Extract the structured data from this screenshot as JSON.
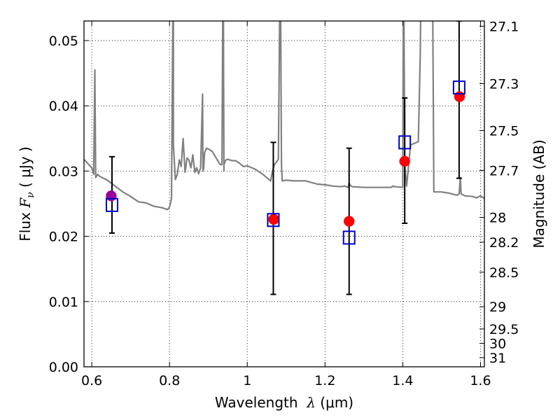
{
  "chart_data": {
    "type": "scatter",
    "xlabel": {
      "prefix": "Wavelength  ",
      "symbol": "λ",
      "unit": " (μm)"
    },
    "ylabel": {
      "prefix": "Flux  ",
      "symbol": "F",
      "subscript": "ν",
      "unit": "  ( μJy )"
    },
    "y2label": "Magnitude (AB)",
    "xlim": [
      0.58,
      1.61
    ],
    "ylim": [
      0.0,
      0.053
    ],
    "grid": true,
    "x_ticks": [
      0.6,
      0.8,
      1.0,
      1.2,
      1.4,
      1.6
    ],
    "x_tick_labels": [
      "0.6",
      "0.8",
      "1",
      "1.2",
      "1.4",
      "1.6"
    ],
    "y_ticks": [
      0.0,
      0.01,
      0.02,
      0.03,
      0.04,
      0.05
    ],
    "y_tick_labels": [
      "0.00",
      "0.01",
      "0.02",
      "0.03",
      "0.04",
      "0.05"
    ],
    "y2_ticks": [
      {
        "label": "27.1",
        "flux": 0.0522
      },
      {
        "label": "27.3",
        "flux": 0.0434
      },
      {
        "label": "27.5",
        "flux": 0.0362
      },
      {
        "label": "27.7",
        "flux": 0.0301
      },
      {
        "label": "28",
        "flux": 0.0229
      },
      {
        "label": "28.2",
        "flux": 0.0191
      },
      {
        "label": "28.5",
        "flux": 0.0145
      },
      {
        "label": "29",
        "flux": 0.0092
      },
      {
        "label": "29.5",
        "flux": 0.0058
      },
      {
        "label": "30",
        "flux": 0.0036
      },
      {
        "label": "31",
        "flux": 0.0014
      }
    ],
    "series": [
      {
        "marker": "line",
        "color": "#808080",
        "x": [
          0.58,
          0.6,
          0.605,
          0.608,
          0.61,
          0.615,
          0.62,
          0.64,
          0.66,
          0.68,
          0.7,
          0.72,
          0.74,
          0.76,
          0.78,
          0.795,
          0.8,
          0.805,
          0.81,
          0.81,
          0.815,
          0.82,
          0.825,
          0.83,
          0.835,
          0.84,
          0.845,
          0.85,
          0.855,
          0.86,
          0.865,
          0.87,
          0.875,
          0.88,
          0.885,
          0.886,
          0.888,
          0.89,
          0.895,
          0.9,
          0.91,
          0.92,
          0.93,
          0.935,
          0.938,
          0.94,
          0.94,
          0.945,
          0.95,
          0.96,
          0.97,
          0.98,
          0.99,
          1.0,
          1.02,
          1.04,
          1.06,
          1.065,
          1.07,
          1.08,
          1.085,
          1.088,
          1.09,
          1.1,
          1.12,
          1.15,
          1.18,
          1.2,
          1.22,
          1.24,
          1.25,
          1.26,
          1.262,
          1.265,
          1.27,
          1.3,
          1.35,
          1.37,
          1.375,
          1.38,
          1.4,
          1.402,
          1.405,
          1.41,
          1.42,
          1.44,
          1.445,
          1.448,
          1.45,
          1.46,
          1.47,
          1.475,
          1.476,
          1.48,
          1.5,
          1.52,
          1.54,
          1.545,
          1.548,
          1.55,
          1.56,
          1.58,
          1.585,
          1.59,
          1.6,
          1.61
        ],
        "y": [
          0.0318,
          0.0305,
          0.0295,
          0.0455,
          0.029,
          0.0295,
          0.0292,
          0.0286,
          0.0277,
          0.0268,
          0.0261,
          0.0253,
          0.0251,
          0.0246,
          0.0244,
          0.0241,
          0.0245,
          0.0258,
          0.065,
          0.034,
          0.0287,
          0.0295,
          0.0317,
          0.0307,
          0.035,
          0.0298,
          0.032,
          0.0317,
          0.0305,
          0.0325,
          0.0298,
          0.0305,
          0.0296,
          0.0305,
          0.0418,
          0.03,
          0.0305,
          0.0328,
          0.0335,
          0.0334,
          0.033,
          0.032,
          0.031,
          0.031,
          0.065,
          0.03,
          0.031,
          0.0317,
          0.0318,
          0.0316,
          0.0316,
          0.0312,
          0.0307,
          0.0308,
          0.0303,
          0.0295,
          0.0285,
          0.03,
          0.031,
          0.0318,
          0.065,
          0.031,
          0.0285,
          0.0286,
          0.0285,
          0.0285,
          0.028,
          0.0279,
          0.0277,
          0.0276,
          0.0277,
          0.0275,
          0.0282,
          0.0278,
          0.0276,
          0.0275,
          0.0275,
          0.0275,
          0.0277,
          0.0276,
          0.0275,
          0.065,
          0.031,
          0.0277,
          0.034,
          0.0345,
          0.048,
          0.065,
          0.063,
          0.0545,
          0.0545,
          0.0565,
          0.065,
          0.0268,
          0.0268,
          0.0266,
          0.0263,
          0.0265,
          0.029,
          0.0265,
          0.0262,
          0.0261,
          0.026,
          0.0259,
          0.0262,
          0.0258
        ]
      },
      {
        "marker": "circle",
        "color": "#9b009b",
        "x": [
          0.65
        ],
        "y": [
          0.0262
        ]
      },
      {
        "marker": "circle",
        "color": "#ff0000",
        "x": [
          1.068,
          1.262,
          1.405,
          1.546
        ],
        "y": [
          0.0226,
          0.0223,
          0.0315,
          0.0414
        ]
      },
      {
        "marker": "square",
        "color": "#0000cc",
        "x": [
          0.652,
          1.067,
          1.262,
          1.405,
          1.545
        ],
        "y": [
          0.0248,
          0.0225,
          0.0198,
          0.0344,
          0.0428
        ]
      },
      {
        "marker": "errorbar",
        "color": "#000000",
        "x": [
          0.652,
          1.067,
          1.262,
          1.405,
          1.545
        ],
        "y_low": [
          0.0205,
          0.0111,
          0.0111,
          0.022,
          0.0289
        ],
        "y_high": [
          0.0322,
          0.0344,
          0.0335,
          0.0412,
          0.053
        ]
      }
    ]
  }
}
